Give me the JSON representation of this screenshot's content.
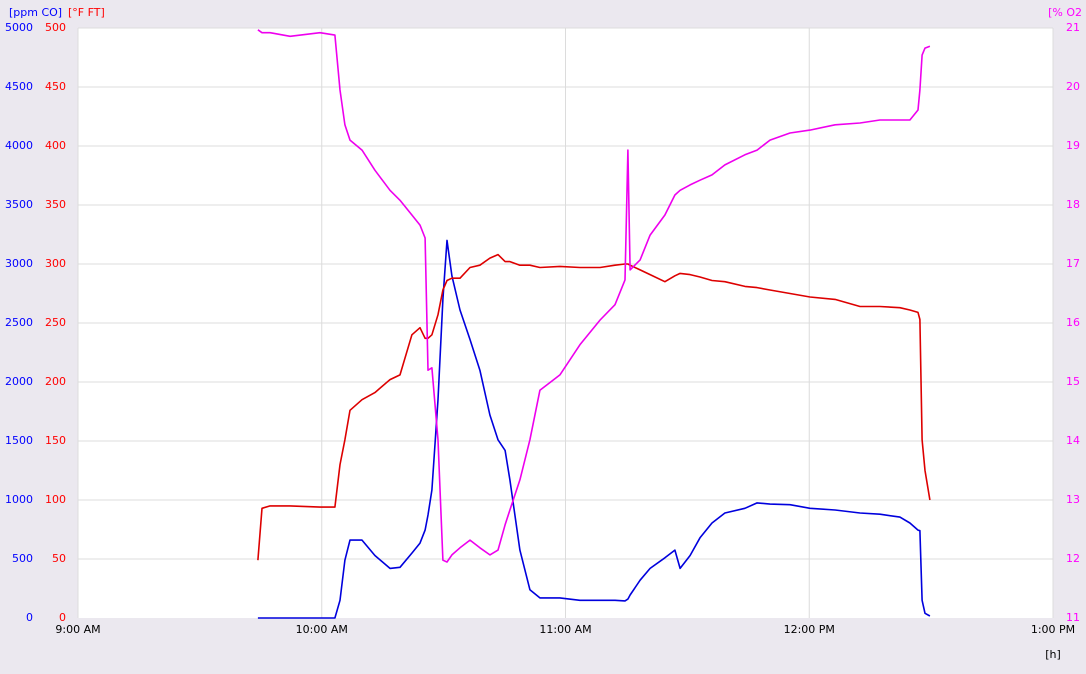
{
  "chart_data": {
    "type": "line",
    "xlabel": "[h]",
    "xlim": [
      9,
      13
    ],
    "xticks": [
      {
        "value": 9,
        "label": "9:00 AM"
      },
      {
        "value": 10,
        "label": "10:00 AM"
      },
      {
        "value": 11,
        "label": "11:00 AM"
      },
      {
        "value": 12,
        "label": "12:00 PM"
      },
      {
        "value": 13,
        "label": "1:00 PM"
      }
    ],
    "ylabel": "[ppm CO]",
    "ylim": [
      0,
      5000
    ],
    "yticks": [
      0,
      500,
      1000,
      1500,
      2000,
      2500,
      3000,
      3500,
      4000,
      4500,
      5000
    ],
    "ycolor": "#0000ff",
    "y3label": "[°F FT]",
    "y3lim": [
      0,
      500
    ],
    "y3ticks": [
      0,
      50,
      100,
      150,
      200,
      250,
      300,
      350,
      400,
      450,
      500
    ],
    "y3color": "#ff0000",
    "y2label": "[% O2",
    "y2lim": [
      11,
      21
    ],
    "y2ticks": [
      11,
      12,
      13,
      14,
      15,
      16,
      17,
      18,
      19,
      20,
      21
    ],
    "y2color": "#ff00ff",
    "grid": true,
    "x": [
      9.738,
      9.755,
      9.788,
      9.87,
      9.993,
      10.054,
      10.075,
      10.095,
      10.116,
      10.165,
      10.218,
      10.28,
      10.321,
      10.37,
      10.403,
      10.424,
      10.436,
      10.452,
      10.477,
      10.497,
      10.514,
      10.534,
      10.567,
      10.608,
      10.649,
      10.69,
      10.723,
      10.752,
      10.772,
      10.813,
      10.854,
      10.895,
      10.977,
      11.059,
      11.142,
      11.203,
      11.244,
      11.256,
      11.265,
      11.306,
      11.347,
      11.408,
      11.449,
      11.47,
      11.511,
      11.552,
      11.601,
      11.654,
      11.736,
      11.786,
      11.839,
      11.921,
      12.003,
      12.106,
      12.208,
      12.29,
      12.372,
      12.413,
      12.446,
      12.454,
      12.463,
      12.475,
      12.495
    ],
    "series": [
      {
        "name": "CO",
        "axis": "y",
        "color": "#0000dd",
        "values": [
          0,
          0,
          0,
          0,
          0,
          0,
          150,
          490,
          660,
          660,
          530,
          420,
          430,
          550,
          635,
          745,
          873,
          1085,
          1850,
          2700,
          3200,
          2900,
          2610,
          2360,
          2100,
          1720,
          1510,
          1420,
          1170,
          575,
          240,
          170,
          170,
          150,
          150,
          150,
          145,
          160,
          195,
          320,
          420,
          510,
          575,
          420,
          530,
          680,
          805,
          890,
          930,
          975,
          965,
          960,
          930,
          915,
          890,
          880,
          855,
          805,
          745,
          740,
          150,
          40,
          17
        ]
      },
      {
        "name": "FT",
        "axis": "y3",
        "color": "#dd0000",
        "values": [
          49,
          93,
          95,
          95,
          94,
          94,
          130,
          151,
          176,
          185,
          191,
          202,
          206,
          240,
          246,
          237,
          237,
          240,
          257,
          278,
          286,
          288,
          288,
          297,
          299,
          305,
          308,
          302,
          302,
          299,
          299,
          297,
          298,
          297,
          297,
          299,
          300,
          300,
          299,
          295,
          291,
          285,
          290,
          292,
          291,
          289,
          286,
          285,
          281,
          280,
          278,
          275,
          272,
          270,
          264,
          264,
          263,
          261,
          259,
          253,
          151,
          125,
          100
        ]
      },
      {
        "name": "O2",
        "axis": "y2",
        "color": "#ee00ee",
        "values": [
          20.97,
          20.92,
          20.92,
          20.86,
          20.92,
          20.88,
          19.95,
          19.36,
          19.1,
          18.93,
          18.59,
          18.25,
          18.08,
          17.83,
          17.66,
          17.44,
          15.2,
          15.24,
          14.02,
          11.98,
          11.95,
          12.07,
          12.19,
          12.32,
          12.19,
          12.07,
          12.15,
          12.58,
          12.83,
          13.34,
          14.02,
          14.86,
          15.12,
          15.63,
          16.05,
          16.31,
          16.73,
          18.93,
          16.9,
          17.07,
          17.49,
          17.83,
          18.17,
          18.25,
          18.34,
          18.42,
          18.51,
          18.68,
          18.85,
          18.93,
          19.1,
          19.22,
          19.27,
          19.36,
          19.39,
          19.44,
          19.44,
          19.44,
          19.61,
          19.95,
          20.54,
          20.66,
          20.69
        ]
      }
    ]
  }
}
